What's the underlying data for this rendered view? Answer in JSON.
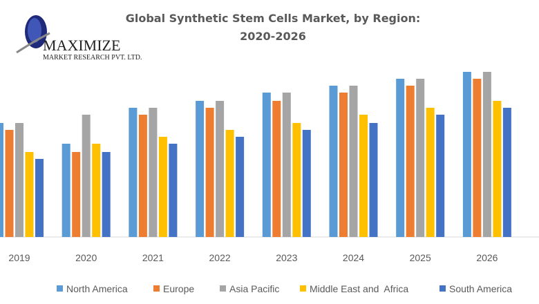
{
  "logo": {
    "name": "MAXIMIZE",
    "sub": "MARKET RESEARCH PVT. LTD."
  },
  "chart_data": {
    "type": "bar",
    "title_line1": "Global Synthetic Stem Cells Market, by Region:",
    "title_line2": "2020-2026",
    "categories": [
      "2019",
      "2020",
      "2021",
      "2022",
      "2023",
      "2024",
      "2025",
      "2026"
    ],
    "series": [
      {
        "name": "North America",
        "color": "#5B9BD5",
        "values": [
          16.5,
          13.5,
          18.7,
          19.7,
          20.9,
          21.9,
          22.9,
          23.9
        ]
      },
      {
        "name": "Europe",
        "color": "#ED7D31",
        "values": [
          15.5,
          12.3,
          17.7,
          18.7,
          19.7,
          20.9,
          21.9,
          22.9
        ]
      },
      {
        "name": "Asia Pacific",
        "color": "#A5A5A5",
        "values": [
          16.5,
          17.7,
          18.7,
          19.7,
          20.9,
          21.9,
          22.9,
          23.9
        ]
      },
      {
        "name": "Middle East and  Africa",
        "color": "#FFC000",
        "values": [
          12.3,
          13.5,
          14.5,
          15.5,
          16.5,
          17.7,
          18.7,
          19.7
        ]
      },
      {
        "name": "South America",
        "color": "#4472C4",
        "values": [
          11.3,
          12.3,
          13.5,
          14.5,
          15.5,
          16.5,
          17.7,
          18.7
        ]
      }
    ],
    "xlabel": "",
    "ylabel": "",
    "ylim": [
      0,
      24.5
    ],
    "grid": false,
    "legend": "bottom"
  }
}
